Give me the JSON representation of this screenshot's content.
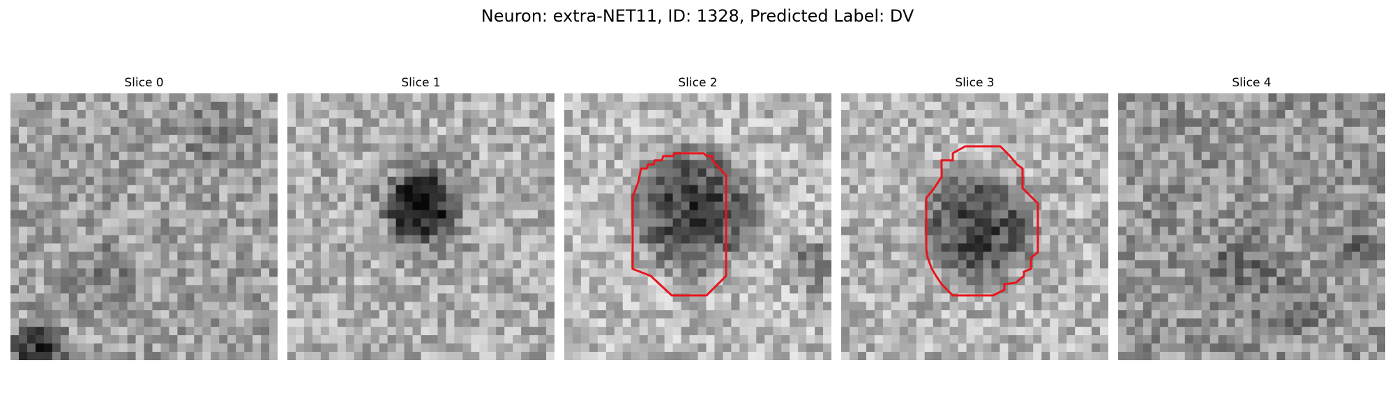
{
  "figure": {
    "title": "Neuron: extra-NET11, ID: 1328, Predicted Label: DV",
    "contour_color": "#e8141c"
  },
  "panels": [
    {
      "title": "Slice 0",
      "has_contour": false
    },
    {
      "title": "Slice 1",
      "has_contour": false
    },
    {
      "title": "Slice 2",
      "has_contour": true
    },
    {
      "title": "Slice 3",
      "has_contour": true
    },
    {
      "title": "Slice 4",
      "has_contour": false
    }
  ]
}
